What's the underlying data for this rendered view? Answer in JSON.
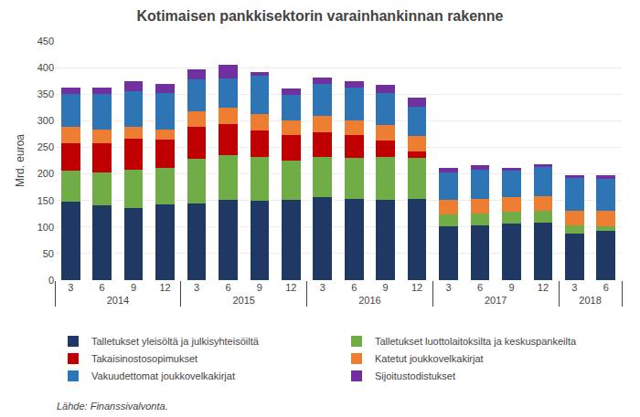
{
  "chart_data": {
    "type": "bar",
    "title": "Kotimaisen pankkisektorin varainhankinnan rakenne",
    "ylabel": "Mrd. euroa",
    "annotations": [
      "Lähde: Finanssivalvonta."
    ],
    "categories": [
      "3",
      "6",
      "9",
      "12",
      "3",
      "6",
      "9",
      "12",
      "3",
      "6",
      "9",
      "12",
      "3",
      "6",
      "9",
      "12",
      "3",
      "6"
    ],
    "category_groups": [
      "2014",
      "2014",
      "2014",
      "2014",
      "2015",
      "2015",
      "2015",
      "2015",
      "2016",
      "2016",
      "2016",
      "2016",
      "2017",
      "2017",
      "2017",
      "2017",
      "2018",
      "2018"
    ],
    "series": [
      {
        "name": "Talletukset yleisöltä ja julkisyhteisöiltä",
        "color": "#1F3864",
        "values": [
          148,
          140,
          135,
          143,
          145,
          152,
          150,
          152,
          157,
          153,
          152,
          153,
          101,
          103,
          106,
          108,
          88,
          92
        ]
      },
      {
        "name": "Talletukset luottolaitoksilta ja keskuspankeilta",
        "color": "#70AD47",
        "values": [
          58,
          63,
          73,
          68,
          83,
          83,
          82,
          73,
          75,
          78,
          80,
          78,
          23,
          22,
          22,
          22,
          15,
          10
        ]
      },
      {
        "name": "Takaisinostosopimukset",
        "color": "#C00000",
        "values": [
          52,
          55,
          58,
          53,
          60,
          58,
          50,
          48,
          47,
          42,
          30,
          12,
          0,
          0,
          0,
          0,
          0,
          0
        ]
      },
      {
        "name": "Katetut joukkovelkakirjat",
        "color": "#ED7D31",
        "values": [
          30,
          25,
          22,
          20,
          30,
          32,
          30,
          28,
          30,
          28,
          30,
          28,
          28,
          28,
          28,
          28,
          28,
          28
        ]
      },
      {
        "name": "Vakuudettomat joukkovelkakirjat",
        "color": "#2E75B6",
        "values": [
          62,
          68,
          68,
          68,
          60,
          55,
          72,
          48,
          60,
          62,
          60,
          55,
          50,
          55,
          50,
          55,
          62,
          60
        ]
      },
      {
        "name": "Sijoitustodistukset",
        "color": "#7030A0",
        "values": [
          12,
          12,
          18,
          18,
          18,
          25,
          7,
          12,
          12,
          12,
          15,
          18,
          10,
          8,
          5,
          5,
          5,
          8
        ]
      }
    ],
    "stacked": true,
    "ylim": [
      0,
      450
    ],
    "yticks": [
      0,
      50,
      100,
      150,
      200,
      250,
      300,
      350,
      400,
      450
    ],
    "grid": true,
    "legend": "bottom"
  }
}
